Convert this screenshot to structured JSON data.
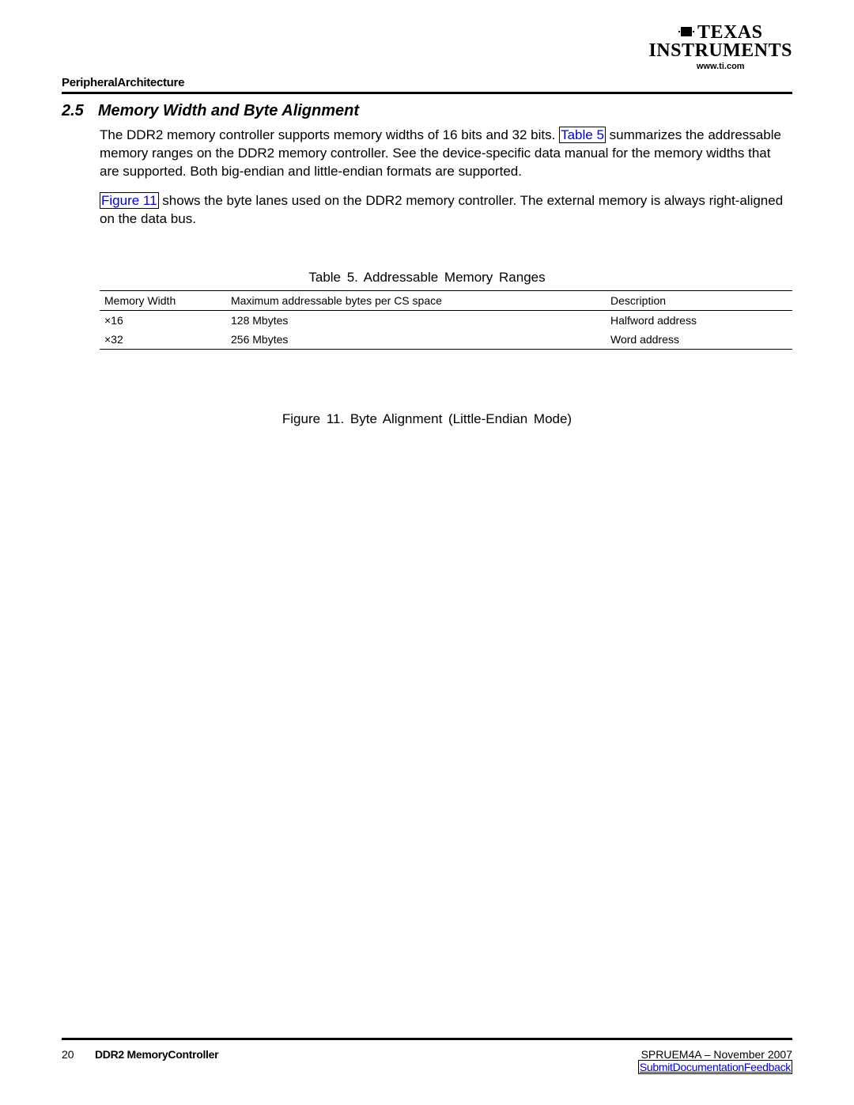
{
  "header": {
    "logo_line1": "TEXAS",
    "logo_line2": "INSTRUMENTS",
    "url": "www.ti.com"
  },
  "section_label": "PeripheralArchitecture",
  "heading": {
    "number": "2.5",
    "title": "Memory Width and Byte Alignment"
  },
  "para1_pre": "The DDR2 memory controller supports memory widths of 16 bits and 32 bits. ",
  "para1_link": "Table 5",
  "para1_post": " summarizes the addressable memory ranges on the DDR2 memory controller. See the device-specific data manual for the memory widths that are supported. Both big-endian and little-endian formats are supported.",
  "para2_link": "Figure 11",
  "para2_post": " shows the byte lanes used on the DDR2 memory controller. The external memory is always right-aligned on the data bus.",
  "table": {
    "caption": "Table 5. Addressable  Memory  Ranges",
    "columns": [
      "Memory  Width",
      "Maximum  addressable  bytes  per CS space",
      "Description"
    ],
    "rows": [
      [
        "×16",
        "128 Mbytes",
        "Halfword address"
      ],
      [
        "×32",
        "256 Mbytes",
        "Word address"
      ]
    ]
  },
  "figure_caption": "Figure  11. Byte  Alignment   (Little-Endian   Mode)",
  "footer": {
    "page": "20",
    "title": "DDR2 MemoryController",
    "docid": "SPRUEM4A – November 2007",
    "feedback": "SubmitDocumentationFeedback"
  },
  "colors": {
    "link": "#0000cc",
    "text": "#000000",
    "bg": "#ffffff"
  }
}
